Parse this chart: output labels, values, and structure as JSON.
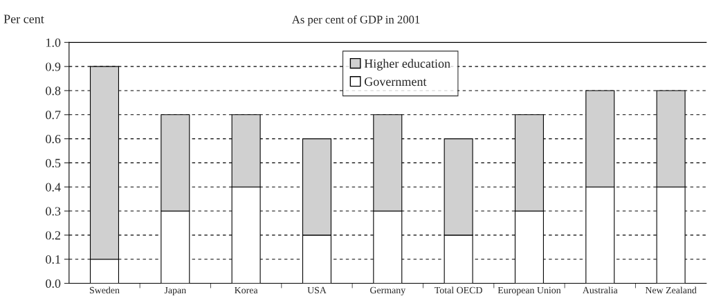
{
  "chart_data": {
    "type": "bar",
    "subtitle": "As per cent of GDP in 2001",
    "ylabel": "Per cent",
    "categories": [
      "Sweden",
      "Japan",
      "Korea",
      "USA",
      "Germany",
      "Total OECD",
      "European Union",
      "Australia",
      "New Zealand"
    ],
    "stacked": true,
    "series": [
      {
        "name": "Government",
        "color": "#ffffff",
        "values": [
          0.1,
          0.3,
          0.4,
          0.2,
          0.3,
          0.2,
          0.3,
          0.4,
          0.4
        ]
      },
      {
        "name": "Higher education",
        "color": "#d0d0d0",
        "values": [
          0.8,
          0.4,
          0.3,
          0.4,
          0.4,
          0.4,
          0.4,
          0.4,
          0.4
        ]
      }
    ],
    "ylim": [
      0,
      1.0
    ],
    "yticks": [
      {
        "value": 0,
        "label": "0.0"
      },
      0.1,
      0.2,
      0.3,
      0.4,
      0.5,
      0.6,
      0.7,
      0.8,
      0.9,
      {
        "value": 1.0,
        "label": "1.0"
      }
    ],
    "grid": "y",
    "legend": "top"
  }
}
